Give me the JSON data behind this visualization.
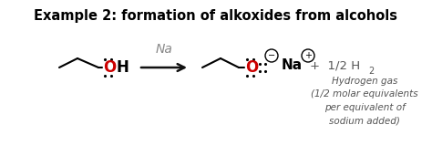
{
  "title": "Example 2: formation of alkoxides from alcohols",
  "title_fontsize": 10.5,
  "background_color": "#ffffff",
  "reagent_label": "Na",
  "reagent_color": "#888888",
  "arrow_color": "#111111",
  "oxygen_color": "#cc0000",
  "note_text": "Hydrogen gas\n(1/2 molar equivalents\nper equivalent of\nsodium added)",
  "note_color": "#555555",
  "fig_width": 4.74,
  "fig_height": 1.71,
  "dpi": 100
}
